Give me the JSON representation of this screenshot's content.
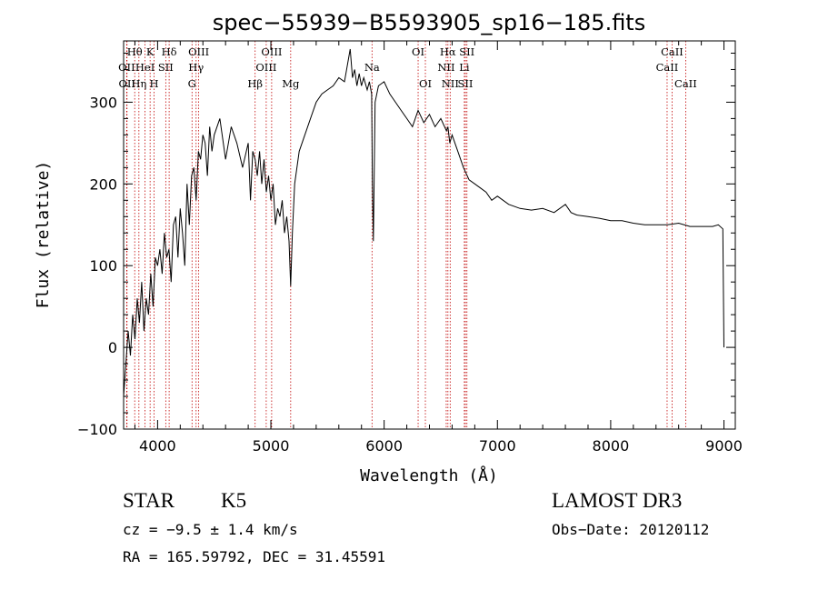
{
  "chart_data": {
    "type": "line",
    "title": "spec−55939−B5593905_sp16−185.fits",
    "xlabel": "Wavelength (Å)",
    "ylabel": "Flux (relative)",
    "xlim": [
      3700,
      9100
    ],
    "ylim": [
      -100,
      375
    ],
    "x_ticks": [
      4000,
      5000,
      6000,
      7000,
      8000,
      9000
    ],
    "y_ticks": [
      -100,
      0,
      100,
      200,
      300
    ],
    "x_tick_labels": [
      "4000",
      "5000",
      "6000",
      "7000",
      "8000",
      "9000"
    ],
    "y_tick_labels": [
      "−100",
      "0",
      "100",
      "200",
      "300"
    ],
    "series": [
      {
        "name": "spectrum",
        "x": [
          3700,
          3720,
          3740,
          3760,
          3780,
          3800,
          3820,
          3840,
          3860,
          3880,
          3900,
          3920,
          3940,
          3960,
          3980,
          4000,
          4020,
          4040,
          4060,
          4080,
          4100,
          4120,
          4140,
          4160,
          4180,
          4200,
          4220,
          4240,
          4260,
          4280,
          4300,
          4320,
          4340,
          4360,
          4380,
          4400,
          4420,
          4440,
          4460,
          4480,
          4500,
          4550,
          4600,
          4650,
          4700,
          4750,
          4800,
          4820,
          4840,
          4861,
          4880,
          4900,
          4920,
          4940,
          4960,
          4980,
          5000,
          5020,
          5040,
          5060,
          5080,
          5100,
          5120,
          5140,
          5160,
          5175,
          5190,
          5210,
          5250,
          5300,
          5350,
          5400,
          5450,
          5500,
          5550,
          5600,
          5650,
          5700,
          5720,
          5740,
          5760,
          5780,
          5800,
          5820,
          5850,
          5870,
          5890,
          5896,
          5905,
          5920,
          5950,
          6000,
          6050,
          6100,
          6150,
          6200,
          6250,
          6300,
          6350,
          6400,
          6450,
          6500,
          6550,
          6563,
          6580,
          6600,
          6650,
          6700,
          6750,
          6800,
          6850,
          6900,
          6950,
          7000,
          7100,
          7200,
          7300,
          7400,
          7500,
          7600,
          7650,
          7700,
          7800,
          7900,
          8000,
          8100,
          8200,
          8300,
          8400,
          8500,
          8600,
          8700,
          8800,
          8900,
          8950,
          8990,
          9000,
          9000
        ],
        "y": [
          -60,
          -20,
          20,
          -10,
          40,
          10,
          60,
          30,
          80,
          20,
          60,
          40,
          90,
          50,
          110,
          100,
          120,
          90,
          140,
          110,
          120,
          80,
          150,
          160,
          110,
          170,
          140,
          100,
          200,
          150,
          210,
          220,
          180,
          240,
          230,
          260,
          250,
          210,
          270,
          240,
          260,
          280,
          230,
          270,
          250,
          220,
          250,
          180,
          240,
          230,
          210,
          240,
          200,
          230,
          190,
          210,
          180,
          200,
          150,
          170,
          160,
          180,
          140,
          160,
          130,
          75,
          140,
          200,
          240,
          260,
          280,
          300,
          310,
          315,
          320,
          330,
          325,
          365,
          330,
          340,
          320,
          335,
          320,
          330,
          315,
          325,
          310,
          200,
          130,
          300,
          320,
          325,
          310,
          300,
          290,
          280,
          270,
          290,
          275,
          285,
          270,
          280,
          265,
          270,
          250,
          260,
          240,
          220,
          205,
          200,
          195,
          190,
          180,
          185,
          175,
          170,
          168,
          170,
          165,
          175,
          165,
          162,
          160,
          158,
          155,
          155,
          152,
          150,
          150,
          150,
          152,
          148,
          148,
          148,
          150,
          145,
          0,
          0
        ]
      }
    ],
    "lines_top": [
      {
        "label": "Hθ",
        "x": 3798
      },
      {
        "label": "K",
        "x": 3934
      },
      {
        "label": "Hδ",
        "x": 4102
      },
      {
        "label": "OIII",
        "x": 4363
      },
      {
        "label": "OIII",
        "x": 5007
      },
      {
        "label": "OI",
        "x": 6300
      },
      {
        "label": "Hα",
        "x": 6563
      },
      {
        "label": "SII",
        "x": 6731
      },
      {
        "label": "CaII",
        "x": 8542
      }
    ],
    "lines_mid": [
      {
        "label": "OII",
        "x": 3727
      },
      {
        "label": "HeI",
        "x": 3889
      },
      {
        "label": "SII",
        "x": 4072
      },
      {
        "label": "Hγ",
        "x": 4340
      },
      {
        "label": "OIII",
        "x": 4959
      },
      {
        "label": "Na",
        "x": 5893
      },
      {
        "label": "NII",
        "x": 6548
      },
      {
        "label": "Li",
        "x": 6708
      },
      {
        "label": "CaII",
        "x": 8498
      }
    ],
    "lines_low": [
      {
        "label": "OII",
        "x": 3730
      },
      {
        "label": "Hη",
        "x": 3835
      },
      {
        "label": "H",
        "x": 3969
      },
      {
        "label": "G",
        "x": 4304
      },
      {
        "label": "Hβ",
        "x": 4861
      },
      {
        "label": "Mg",
        "x": 5175
      },
      {
        "label": "OI",
        "x": 6364
      },
      {
        "label": "NII",
        "x": 6583
      },
      {
        "label": "SII",
        "x": 6717
      },
      {
        "label": "CaII",
        "x": 8662
      }
    ]
  },
  "info": {
    "object_class": "STAR",
    "subclass": "K5",
    "survey": "LAMOST DR3",
    "cz": "cz = −9.5 ± 1.4 km/s",
    "obs_date": "Obs−Date: 20120112",
    "coords": "RA = 165.59792, DEC =  31.45591"
  }
}
